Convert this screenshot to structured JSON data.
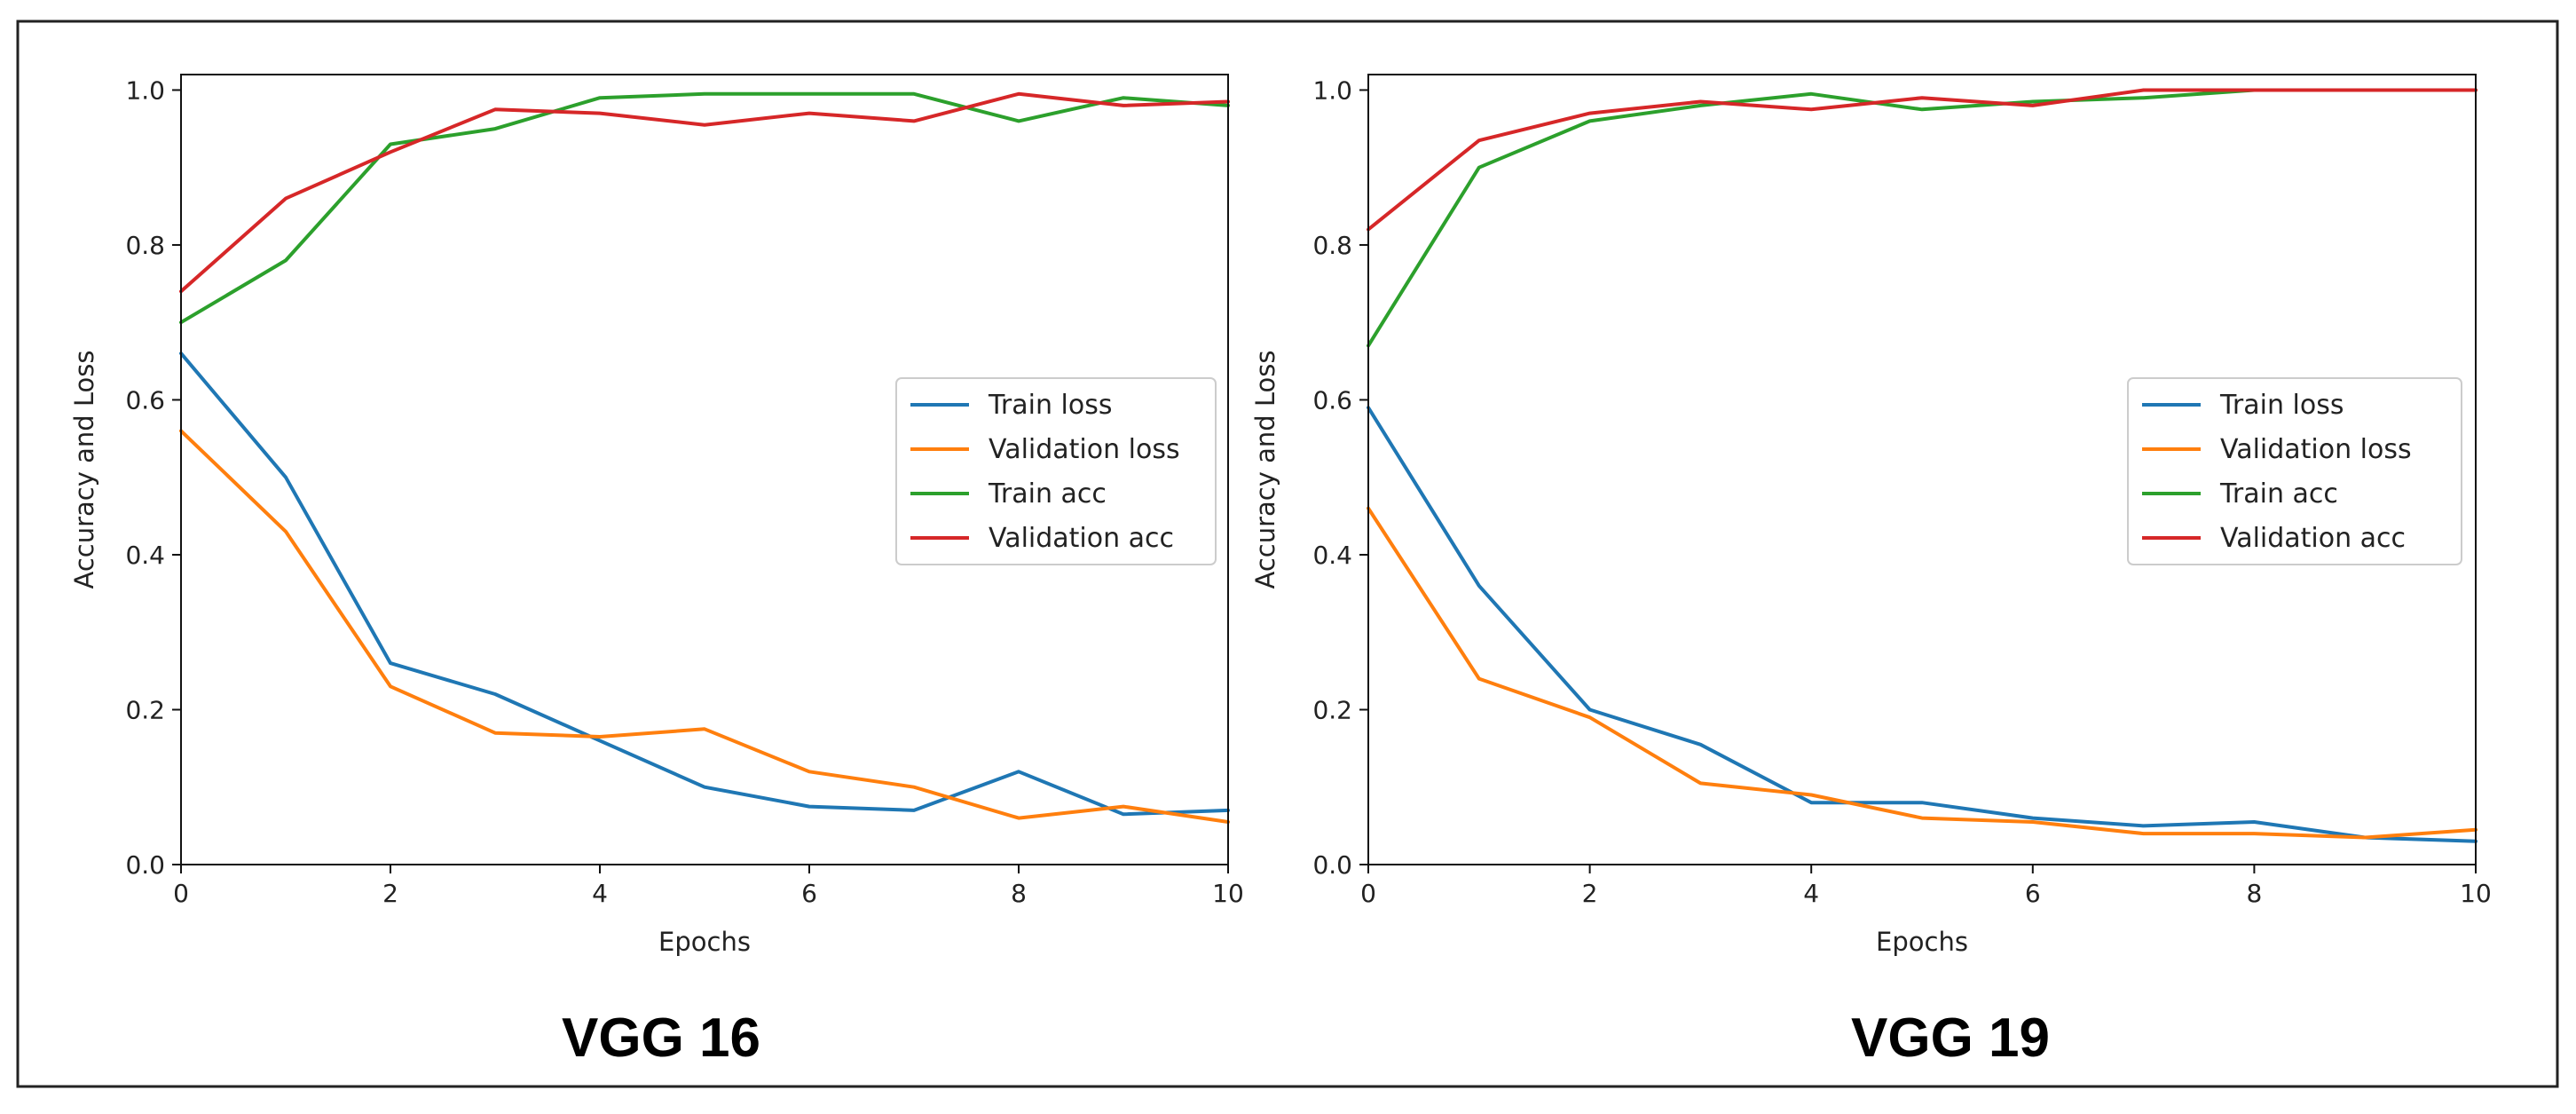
{
  "chart_data": [
    {
      "type": "line",
      "title": "VGG 16",
      "xlabel": "Epochs",
      "ylabel": "Accuracy and Loss",
      "xlim": [
        0,
        10
      ],
      "ylim": [
        0,
        1.02
      ],
      "xticks": [
        "0",
        "2",
        "4",
        "6",
        "8",
        "10"
      ],
      "yticks": [
        "0.0",
        "0.2",
        "0.4",
        "0.6",
        "0.8",
        "1.0"
      ],
      "legend_position": "center-right",
      "x": [
        0,
        1,
        2,
        3,
        4,
        5,
        6,
        7,
        8,
        9,
        10
      ],
      "series": [
        {
          "name": "Train loss",
          "color": "#1f77b4",
          "values": [
            0.66,
            0.5,
            0.26,
            0.22,
            0.16,
            0.1,
            0.075,
            0.07,
            0.12,
            0.065,
            0.07
          ]
        },
        {
          "name": "Validation loss",
          "color": "#ff7f0e",
          "values": [
            0.56,
            0.43,
            0.23,
            0.17,
            0.165,
            0.175,
            0.12,
            0.1,
            0.06,
            0.075,
            0.055
          ]
        },
        {
          "name": "Train acc",
          "color": "#2ca02c",
          "values": [
            0.7,
            0.78,
            0.93,
            0.95,
            0.99,
            0.995,
            0.995,
            0.995,
            0.96,
            0.99,
            0.98
          ]
        },
        {
          "name": "Validation acc",
          "color": "#d62728",
          "values": [
            0.74,
            0.86,
            0.92,
            0.975,
            0.97,
            0.955,
            0.97,
            0.96,
            0.995,
            0.98,
            0.985
          ]
        }
      ]
    },
    {
      "type": "line",
      "title": "VGG 19",
      "xlabel": "Epochs",
      "ylabel": "Accuracy and Loss",
      "xlim": [
        0,
        10
      ],
      "ylim": [
        0,
        1.02
      ],
      "xticks": [
        "0",
        "2",
        "4",
        "6",
        "8",
        "10"
      ],
      "yticks": [
        "0.0",
        "0.2",
        "0.4",
        "0.6",
        "0.8",
        "1.0"
      ],
      "legend_position": "center-right",
      "x": [
        0,
        1,
        2,
        3,
        4,
        5,
        6,
        7,
        8,
        9,
        10
      ],
      "series": [
        {
          "name": "Train loss",
          "color": "#1f77b4",
          "values": [
            0.59,
            0.36,
            0.2,
            0.155,
            0.08,
            0.08,
            0.06,
            0.05,
            0.055,
            0.035,
            0.03
          ]
        },
        {
          "name": "Validation loss",
          "color": "#ff7f0e",
          "values": [
            0.46,
            0.24,
            0.19,
            0.105,
            0.09,
            0.06,
            0.055,
            0.04,
            0.04,
            0.035,
            0.045
          ]
        },
        {
          "name": "Train acc",
          "color": "#2ca02c",
          "values": [
            0.67,
            0.9,
            0.96,
            0.98,
            0.995,
            0.975,
            0.985,
            0.99,
            1.0,
            1.0,
            1.0
          ]
        },
        {
          "name": "Validation acc",
          "color": "#d62728",
          "values": [
            0.82,
            0.935,
            0.97,
            0.985,
            0.975,
            0.99,
            0.98,
            1.0,
            1.0,
            1.0,
            1.0
          ]
        }
      ]
    }
  ]
}
